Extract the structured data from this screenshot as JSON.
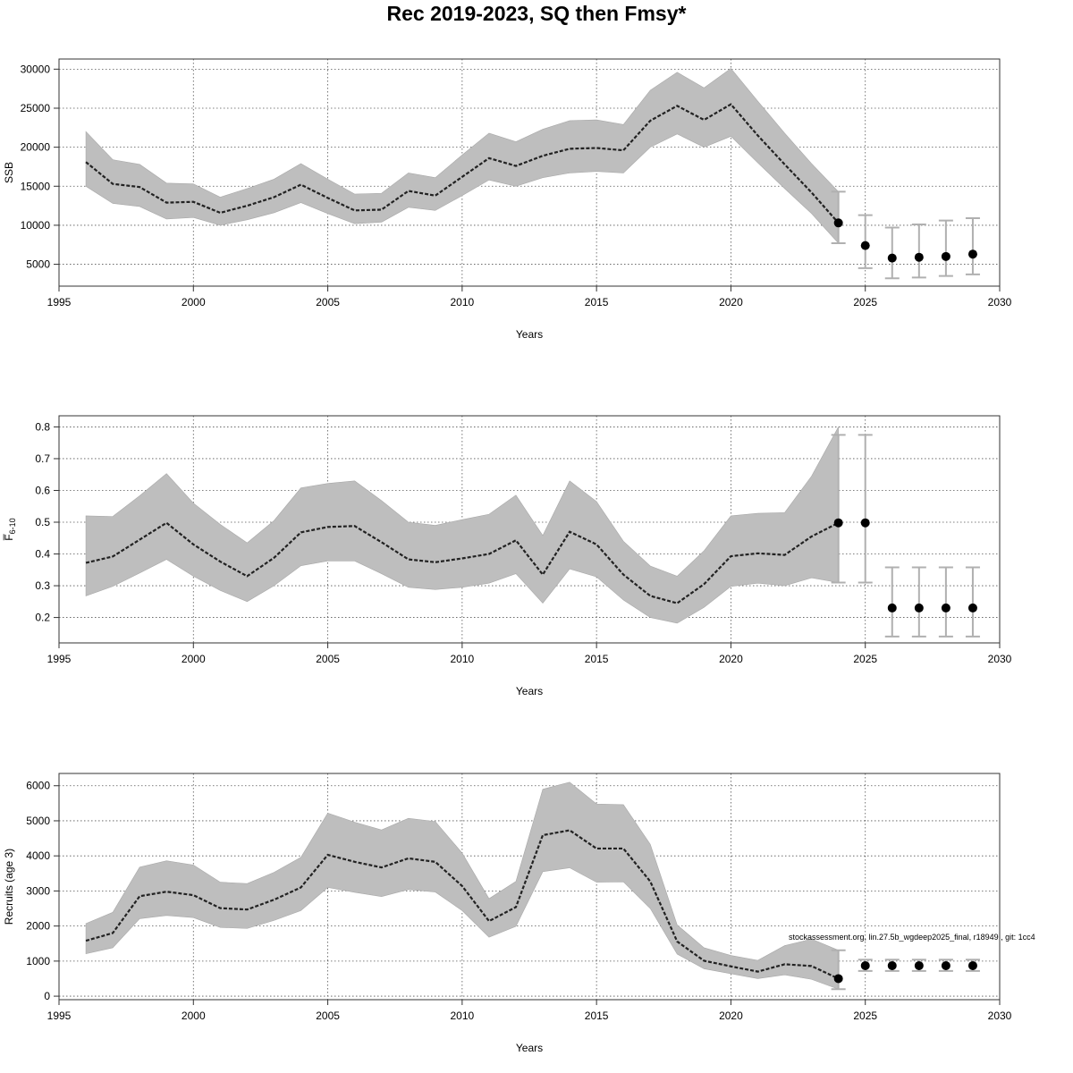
{
  "title": "Rec 2019-2023, SQ then Fmsy*",
  "watermark": "stockassessment.org, lin.27.5b_wgdeep2025_final, r18949 , git: 1cc4",
  "colors": {
    "band": "#bebebe",
    "line": "#222222",
    "point": "#000000",
    "errorbar": "#b0b0b0",
    "grid": "#555555"
  },
  "chart_data": [
    {
      "name": "ssb-panel",
      "type": "line",
      "title": "",
      "xlabel": "Years",
      "ylabel": "SSB",
      "xlim": [
        1995,
        2030
      ],
      "ylim": [
        2200,
        31300
      ],
      "xticks": [
        1995,
        2000,
        2005,
        2010,
        2015,
        2020,
        2025,
        2030
      ],
      "yticks": [
        5000,
        10000,
        15000,
        20000,
        25000,
        30000
      ],
      "grid": true,
      "x": [
        1996,
        1997,
        1998,
        1999,
        2000,
        2001,
        2002,
        2003,
        2004,
        2005,
        2006,
        2007,
        2008,
        2009,
        2010,
        2011,
        2012,
        2013,
        2014,
        2015,
        2016,
        2017,
        2018,
        2019,
        2020,
        2021,
        2022,
        2023,
        2024
      ],
      "estimate": [
        18100,
        15300,
        14900,
        12900,
        13000,
        11600,
        12500,
        13600,
        15200,
        13500,
        11900,
        12000,
        14400,
        13800,
        16200,
        18600,
        17600,
        18900,
        19800,
        19900,
        19600,
        23400,
        25300,
        23500,
        25500,
        21500,
        17800,
        14200,
        10300
      ],
      "lower": [
        15000,
        12800,
        12400,
        10800,
        11000,
        10000,
        10700,
        11600,
        12900,
        11500,
        10200,
        10400,
        12300,
        11900,
        13800,
        15800,
        15000,
        16100,
        16700,
        16900,
        16700,
        20000,
        21700,
        20000,
        21400,
        18000,
        14700,
        11500,
        7700
      ],
      "upper": [
        22000,
        18400,
        17800,
        15400,
        15300,
        13600,
        14700,
        15900,
        17900,
        15900,
        14000,
        14100,
        16700,
        16100,
        19000,
        21800,
        20700,
        22300,
        23400,
        23500,
        22900,
        27300,
        29600,
        27600,
        30100,
        25900,
        21800,
        17900,
        14300
      ],
      "forecast": {
        "x": [
          2024,
          2025,
          2026,
          2027,
          2028,
          2029
        ],
        "median": [
          10300,
          7400,
          5800,
          5900,
          6000,
          6300
        ],
        "lower": [
          7700,
          4500,
          3200,
          3300,
          3500,
          3700
        ],
        "upper": [
          14300,
          11300,
          9700,
          10100,
          10600,
          10900
        ]
      }
    },
    {
      "name": "f-panel",
      "type": "line",
      "title": "",
      "xlabel": "Years",
      "ylabel": "F̅",
      "ylabel_sub": "6-10",
      "xlim": [
        1995,
        2030
      ],
      "ylim": [
        0.12,
        0.835
      ],
      "xticks": [
        1995,
        2000,
        2005,
        2010,
        2015,
        2020,
        2025,
        2030
      ],
      "yticks": [
        0.2,
        0.3,
        0.4,
        0.5,
        0.6,
        0.7,
        0.8
      ],
      "grid": true,
      "x": [
        1996,
        1997,
        1998,
        1999,
        2000,
        2001,
        2002,
        2003,
        2004,
        2005,
        2006,
        2007,
        2008,
        2009,
        2010,
        2011,
        2012,
        2013,
        2014,
        2015,
        2016,
        2017,
        2018,
        2019,
        2020,
        2021,
        2022,
        2023,
        2024
      ],
      "estimate": [
        0.372,
        0.392,
        0.445,
        0.498,
        0.43,
        0.376,
        0.33,
        0.388,
        0.468,
        0.485,
        0.488,
        0.437,
        0.383,
        0.374,
        0.386,
        0.4,
        0.443,
        0.335,
        0.47,
        0.43,
        0.335,
        0.268,
        0.245,
        0.305,
        0.393,
        0.402,
        0.397,
        0.455,
        0.498
      ],
      "lower": [
        0.268,
        0.298,
        0.34,
        0.383,
        0.33,
        0.285,
        0.25,
        0.3,
        0.363,
        0.378,
        0.378,
        0.338,
        0.295,
        0.288,
        0.295,
        0.308,
        0.338,
        0.245,
        0.353,
        0.328,
        0.255,
        0.2,
        0.182,
        0.232,
        0.298,
        0.308,
        0.3,
        0.325,
        0.31
      ],
      "upper": [
        0.52,
        0.518,
        0.583,
        0.653,
        0.56,
        0.493,
        0.435,
        0.505,
        0.608,
        0.622,
        0.63,
        0.568,
        0.5,
        0.49,
        0.508,
        0.525,
        0.585,
        0.458,
        0.63,
        0.565,
        0.44,
        0.362,
        0.33,
        0.41,
        0.52,
        0.528,
        0.53,
        0.645,
        0.8
      ],
      "forecast": {
        "x": [
          2024,
          2025,
          2026,
          2027,
          2028,
          2029
        ],
        "median": [
          0.498,
          0.498,
          0.23,
          0.23,
          0.23,
          0.23
        ],
        "lower": [
          0.31,
          0.31,
          0.14,
          0.14,
          0.14,
          0.14
        ],
        "upper": [
          0.775,
          0.775,
          0.358,
          0.358,
          0.358,
          0.358
        ]
      }
    },
    {
      "name": "recruits-panel",
      "type": "line",
      "title": "",
      "xlabel": "Years",
      "ylabel": "Recruits (age 3)",
      "xlim": [
        1995,
        2030
      ],
      "ylim": [
        -100,
        6350
      ],
      "xticks": [
        1995,
        2000,
        2005,
        2010,
        2015,
        2020,
        2025,
        2030
      ],
      "yticks": [
        0,
        1000,
        2000,
        3000,
        4000,
        5000,
        6000
      ],
      "grid": true,
      "x": [
        1996,
        1997,
        1998,
        1999,
        2000,
        2001,
        2002,
        2003,
        2004,
        2005,
        2006,
        2007,
        2008,
        2009,
        2010,
        2011,
        2012,
        2013,
        2014,
        2015,
        2016,
        2017,
        2018,
        2019,
        2020,
        2021,
        2022,
        2023,
        2024
      ],
      "estimate": [
        1580,
        1800,
        2850,
        2980,
        2880,
        2510,
        2470,
        2750,
        3100,
        4030,
        3830,
        3670,
        3930,
        3830,
        3140,
        2140,
        2540,
        4590,
        4730,
        4210,
        4210,
        3270,
        1560,
        1010,
        850,
        700,
        910,
        860,
        500
      ],
      "lower": [
        1210,
        1380,
        2210,
        2300,
        2240,
        1960,
        1930,
        2160,
        2440,
        3100,
        2960,
        2840,
        3040,
        2970,
        2440,
        1680,
        1990,
        3550,
        3660,
        3250,
        3260,
        2500,
        1200,
        780,
        640,
        500,
        610,
        480,
        200
      ],
      "upper": [
        2070,
        2390,
        3680,
        3860,
        3740,
        3250,
        3210,
        3530,
        3960,
        5220,
        4960,
        4740,
        5070,
        4980,
        4080,
        2780,
        3270,
        5900,
        6100,
        5480,
        5460,
        4330,
        2030,
        1380,
        1160,
        1020,
        1440,
        1630,
        1310
      ],
      "forecast": {
        "x": [
          2024,
          2025,
          2026,
          2027,
          2028,
          2029
        ],
        "median": [
          500,
          870,
          870,
          870,
          870,
          870
        ],
        "lower": [
          200,
          720,
          720,
          720,
          720,
          720
        ],
        "upper": [
          1310,
          1040,
          1040,
          1040,
          1040,
          1040
        ]
      }
    }
  ]
}
